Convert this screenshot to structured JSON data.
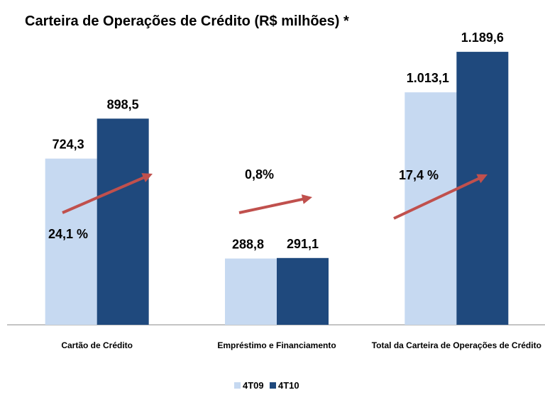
{
  "chart_data": {
    "type": "bar",
    "title": "Carteira de Operações de Crédito  (R$ milhões) *",
    "categories": [
      "Cartão de Crédito",
      "Empréstimo  e Financiamento",
      "Total da Carteira de Operações de Crédito"
    ],
    "series": [
      {
        "name": "4T09",
        "color": "#c6d9f1",
        "values": [
          724.3,
          288.8,
          1013.1
        ],
        "value_labels": [
          "724,3",
          "288,8",
          "1.013,1"
        ]
      },
      {
        "name": "4T10",
        "color": "#1f497d",
        "values": [
          898.5,
          291.1,
          1189.6
        ],
        "value_labels": [
          "898,5",
          "291,1",
          "1.189,6"
        ]
      }
    ],
    "annotations": [
      "24,1 %",
      "0,8%",
      "17,4 %"
    ],
    "arrow_color": "#c0504d",
    "ylim": [
      0,
      1400
    ],
    "legend": "bottom"
  }
}
